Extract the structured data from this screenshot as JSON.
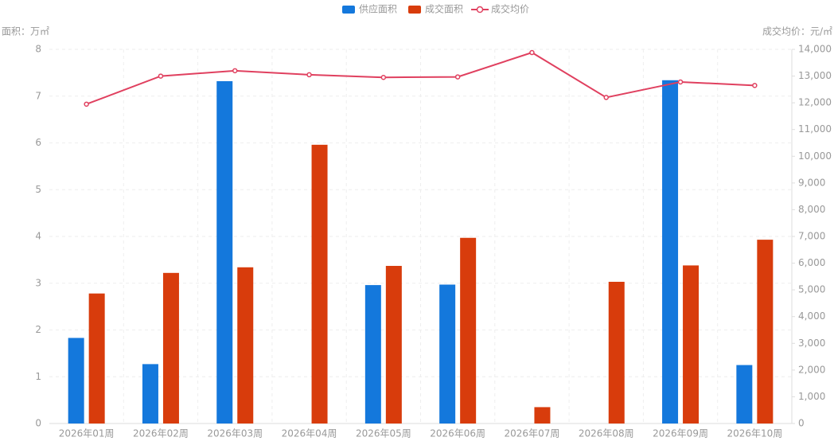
{
  "chart_data": {
    "type": "bar-line",
    "categories": [
      "2026年01周",
      "2026年02周",
      "2026年03周",
      "2026年04周",
      "2026年05周",
      "2026年06周",
      "2026年07周",
      "2026年08周",
      "2026年09周",
      "2026年10周"
    ],
    "y_label": "面积：万㎡",
    "y2_label": "成交均价：元/㎡",
    "ylim": [
      0,
      8
    ],
    "yticks": [
      0,
      1,
      2,
      3,
      4,
      5,
      6,
      7,
      8
    ],
    "y2lim": [
      0,
      14000
    ],
    "y2ticks": [
      0,
      {
        "value": 1000,
        "label": "1,000"
      },
      {
        "value": 2000,
        "label": "2,000"
      },
      {
        "value": 3000,
        "label": "3,000"
      },
      {
        "value": 4000,
        "label": "4,000"
      },
      {
        "value": 5000,
        "label": "5,000"
      },
      {
        "value": 6000,
        "label": "6,000"
      },
      {
        "value": 7000,
        "label": "7,000"
      },
      {
        "value": 8000,
        "label": "8,000"
      },
      {
        "value": 9000,
        "label": "9,000"
      },
      {
        "value": 10000,
        "label": "10,000"
      },
      {
        "value": 11000,
        "label": "11,000"
      },
      {
        "value": 12000,
        "label": "12,000"
      },
      {
        "value": 13000,
        "label": "13,000"
      },
      {
        "value": 14000,
        "label": "14,000"
      }
    ],
    "grid": true,
    "legend": "top",
    "series": [
      {
        "name": "供应面积",
        "type": "bar",
        "color": "#1478dc",
        "values": [
          1.83,
          1.27,
          7.32,
          null,
          2.96,
          2.97,
          null,
          null,
          7.34,
          1.25
        ]
      },
      {
        "name": "成交面积",
        "type": "bar",
        "color": "#d83c0c",
        "values": [
          2.78,
          3.22,
          3.34,
          5.96,
          3.37,
          3.97,
          0.35,
          3.03,
          3.38,
          3.93
        ]
      },
      {
        "name": "成交均价",
        "type": "line",
        "axis": "y2",
        "color": "#e0405f",
        "values": [
          11950,
          13000,
          13200,
          13050,
          12950,
          12970,
          13880,
          12200,
          12780,
          12650
        ]
      }
    ]
  }
}
